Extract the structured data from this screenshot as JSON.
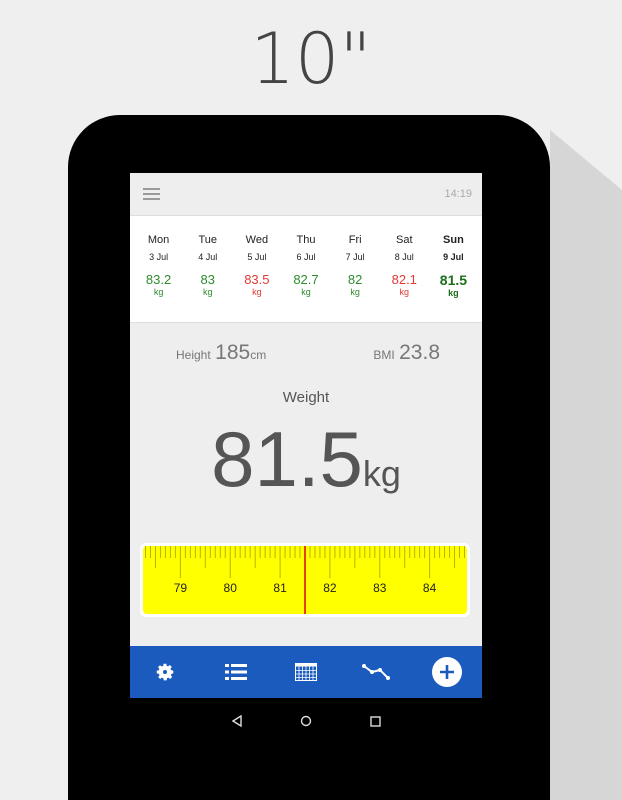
{
  "caption": "10\"",
  "status": {
    "time": "14:19"
  },
  "week": [
    {
      "day": "Mon",
      "date": "3 Jul",
      "value": "83.2",
      "unit": "kg",
      "color": "#2e8b2e"
    },
    {
      "day": "Tue",
      "date": "4 Jul",
      "value": "83",
      "unit": "kg",
      "color": "#2e8b2e"
    },
    {
      "day": "Wed",
      "date": "5 Jul",
      "value": "83.5",
      "unit": "kg",
      "color": "#e53935"
    },
    {
      "day": "Thu",
      "date": "6 Jul",
      "value": "82.7",
      "unit": "kg",
      "color": "#2e8b2e"
    },
    {
      "day": "Fri",
      "date": "7 Jul",
      "value": "82",
      "unit": "kg",
      "color": "#2e8b2e"
    },
    {
      "day": "Sat",
      "date": "8 Jul",
      "value": "82.1",
      "unit": "kg",
      "color": "#e53935"
    },
    {
      "day": "Sun",
      "date": "9 Jul",
      "value": "81.5",
      "unit": "kg",
      "color": "#1b6e1b",
      "current": true
    }
  ],
  "stats": {
    "height_label": "Height",
    "height_value": "185",
    "height_unit": "cm",
    "bmi_label": "BMI",
    "bmi_value": "23.8"
  },
  "weight": {
    "label": "Weight",
    "value": "81.5",
    "unit": "kg"
  },
  "ruler": {
    "labels": [
      "79",
      "80",
      "81",
      "82",
      "83",
      "84"
    ],
    "selected": 81.5,
    "min": 78.25,
    "max": 84.75,
    "tape_color": "#ffff00",
    "indicator_color": "#e00000"
  },
  "bottom_nav": [
    "gear-icon",
    "list-icon",
    "calendar-icon",
    "chart-line-icon",
    "add-icon"
  ],
  "accent": "#1a5bbd"
}
